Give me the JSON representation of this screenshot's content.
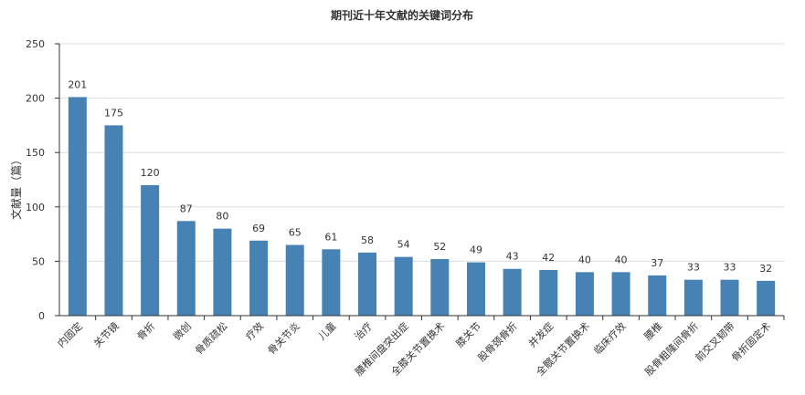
{
  "chart_data": {
    "type": "bar",
    "title": "期刊近十年文献的关键词分布",
    "xlabel": "",
    "ylabel": "文献量（篇）",
    "ylim": [
      0,
      250
    ],
    "yticks": [
      0,
      50,
      100,
      150,
      200,
      250
    ],
    "grid": true,
    "legend": "none",
    "bar_color": "#4682b4",
    "categories": [
      "内固定",
      "关节镜",
      "骨折",
      "微创",
      "骨质疏松",
      "疗效",
      "骨关节炎",
      "儿童",
      "治疗",
      "腰椎间盘突出症",
      "全膝关节置换术",
      "膝关节",
      "股骨颈骨折",
      "并发症",
      "全髋关节置换术",
      "临床疗效",
      "腰椎",
      "股骨粗隆间骨折",
      "前交叉韧带",
      "骨折固定术"
    ],
    "values": [
      201,
      175,
      120,
      87,
      80,
      69,
      65,
      61,
      58,
      54,
      52,
      49,
      43,
      42,
      40,
      40,
      37,
      33,
      33,
      32
    ]
  }
}
